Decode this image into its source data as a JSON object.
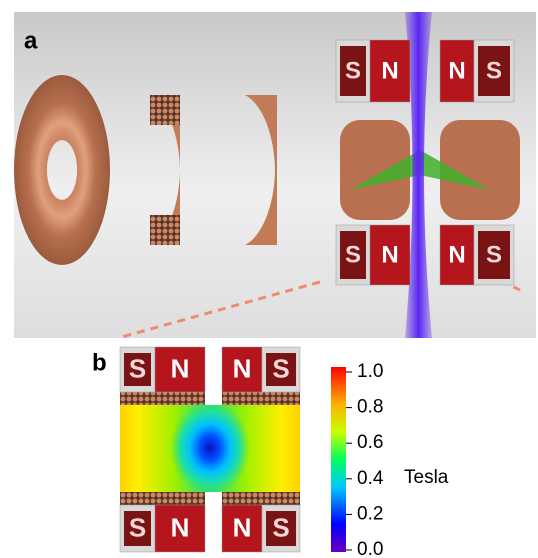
{
  "panel_a": {
    "label": "a",
    "magnets": [
      "S",
      "N",
      "N",
      "S",
      "S",
      "N",
      "N",
      "S"
    ]
  },
  "panel_b": {
    "label": "b",
    "magnets": [
      "S",
      "N",
      "N",
      "S",
      "S",
      "N",
      "N",
      "S"
    ],
    "colorbar": {
      "label": "Tesla",
      "lim": [
        0,
        1
      ],
      "ticks": [
        {
          "value": 0,
          "label": "0.0"
        },
        0.2,
        0.4,
        0.6,
        0.8,
        {
          "value": 1,
          "label": "1.0"
        }
      ]
    }
  }
}
